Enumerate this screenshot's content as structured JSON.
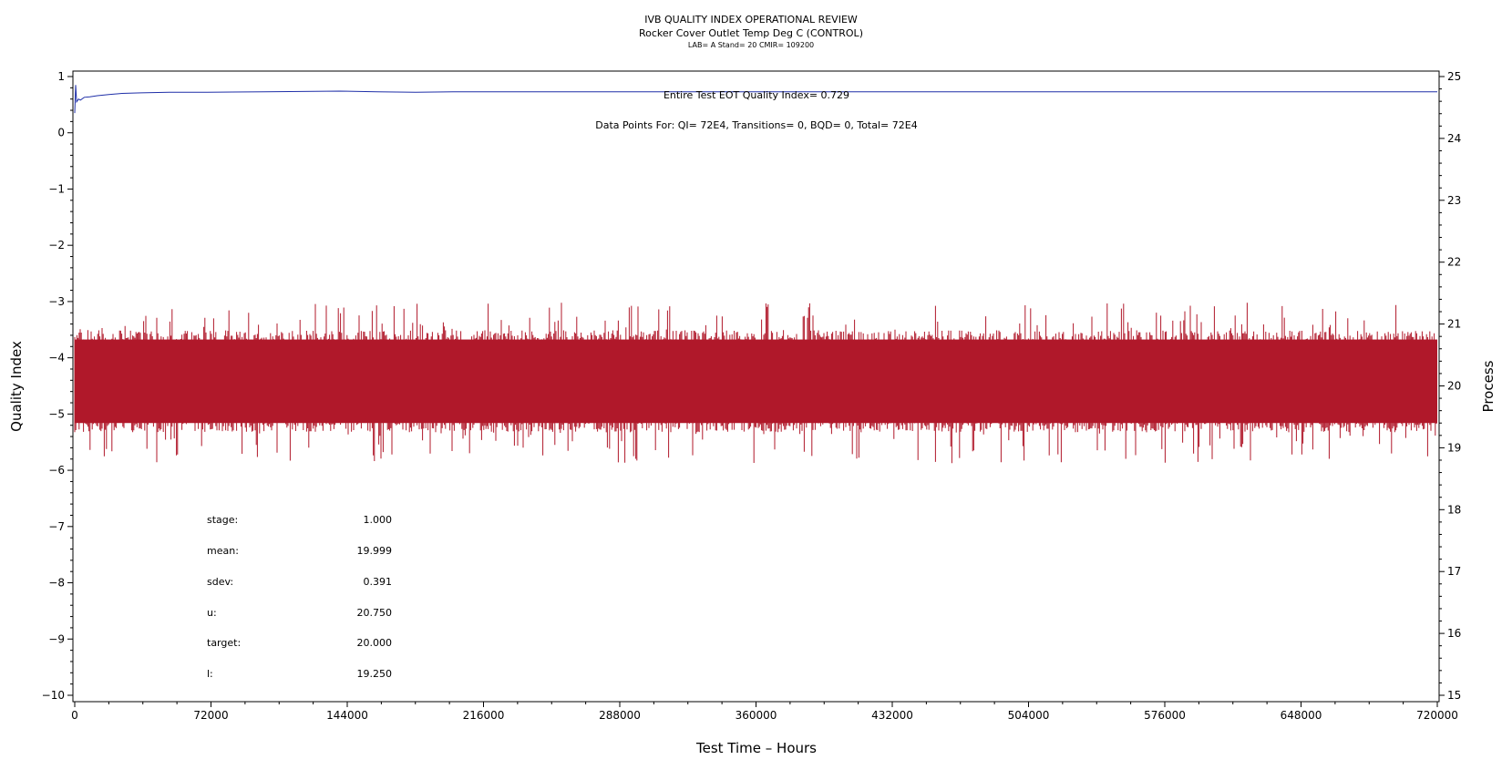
{
  "chart_data": {
    "type": "line",
    "title": "IVB QUALITY INDEX OPERATIONAL REVIEW",
    "subtitle": "Rocker Cover Outlet Temp Deg C (CONTROL)",
    "subtitle2": "LAB= A Stand= 20 CMIR= 109200",
    "xlabel": "Test Time – Hours",
    "ylabel_left": "Quality Index",
    "ylabel_right": "Process",
    "xlim": [
      0,
      720000
    ],
    "ylim_left": [
      -10,
      1
    ],
    "ylim_right": [
      15,
      25
    ],
    "x_ticks": [
      "0",
      "72000",
      "144000",
      "216000",
      "288000",
      "360000",
      "432000",
      "504000",
      "576000",
      "648000",
      "720000"
    ],
    "x_tick_values": [
      0,
      72000,
      144000,
      216000,
      288000,
      360000,
      432000,
      504000,
      576000,
      648000,
      720000
    ],
    "y_left_ticks": [
      "1",
      "0",
      "−1",
      "−2",
      "−3",
      "−4",
      "−5",
      "−6",
      "−7",
      "−8",
      "−9",
      "−10"
    ],
    "y_left_tick_values": [
      1,
      0,
      -1,
      -2,
      -3,
      -4,
      -5,
      -6,
      -7,
      -8,
      -9,
      -10
    ],
    "y_right_ticks": [
      "25",
      "24",
      "23",
      "22",
      "21",
      "20",
      "19",
      "18",
      "17",
      "16",
      "15"
    ],
    "y_right_tick_values": [
      25,
      24,
      23,
      22,
      21,
      20,
      19,
      18,
      17,
      16,
      15
    ],
    "annotations": {
      "quality_index": "Entire Test EOT Quality Index=   0.729",
      "data_points": "Data Points For: QI=  72E4, Transitions=     0, BQD=     0, Total=  72E4"
    },
    "stats": [
      {
        "label": "stage:",
        "value": "1.000"
      },
      {
        "label": "mean:",
        "value": "19.999"
      },
      {
        "label": "sdev:",
        "value": "0.391"
      },
      {
        "label": "u:",
        "value": "20.750"
      },
      {
        "label": "target:",
        "value": "20.000"
      },
      {
        "label": "l:",
        "value": "19.250"
      }
    ],
    "series": [
      {
        "axis": "left",
        "color": "#1f2fa8",
        "x": [
          0,
          500,
          1000,
          2000,
          3000,
          5000,
          8000,
          12000,
          18000,
          25000,
          35000,
          50000,
          70000,
          100000,
          140000,
          160000,
          180000,
          200000,
          260000,
          360000,
          500000,
          600000,
          720000
        ],
        "values": [
          0.35,
          0.85,
          0.55,
          0.6,
          0.58,
          0.63,
          0.64,
          0.66,
          0.68,
          0.7,
          0.71,
          0.72,
          0.72,
          0.73,
          0.74,
          0.73,
          0.72,
          0.73,
          0.73,
          0.73,
          0.73,
          0.73,
          0.729
        ]
      },
      {
        "axis": "right",
        "color": "#b0182a",
        "mean": 19.999,
        "sdev": 0.391,
        "band_low": 19.4,
        "band_high": 20.75,
        "min": 18.75,
        "max": 21.35,
        "x_range": [
          0,
          720000
        ]
      }
    ],
    "grid": false
  }
}
